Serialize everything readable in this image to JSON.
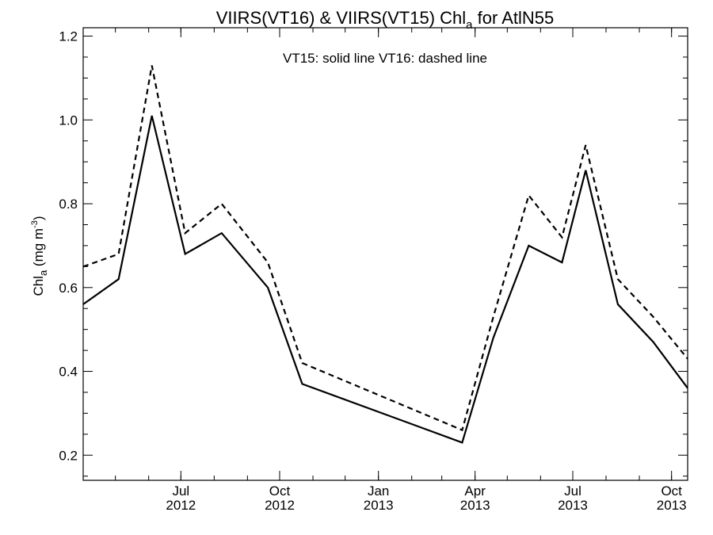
{
  "chart_data": {
    "type": "line",
    "title": {
      "prefix": "VIIRS(VT16) & VIIRS(VT15)  Chl",
      "subscript": "a",
      "suffix": " for AtlN55"
    },
    "annotation": "VT15: solid line   VT16: dashed line",
    "ylabel": {
      "prefix": "Chl",
      "subscript": "a",
      "middle": " (mg m",
      "superscript": "-3",
      "suffix": ")"
    },
    "xlim": [
      "2012-04-01",
      "2013-10-16"
    ],
    "ylim": [
      0.14,
      1.22
    ],
    "yticks": [
      {
        "value": 0.2,
        "label": "0.2"
      },
      {
        "value": 0.4,
        "label": "0.4"
      },
      {
        "value": 0.6,
        "label": "0.6"
      },
      {
        "value": 0.8,
        "label": "0.8"
      },
      {
        "value": 1.0,
        "label": "1.0"
      },
      {
        "value": 1.2,
        "label": "1.2"
      }
    ],
    "xticks": [
      {
        "date": "2012-07-01",
        "month": "Jul",
        "year": "2012"
      },
      {
        "date": "2012-10-01",
        "month": "Oct",
        "year": "2012"
      },
      {
        "date": "2013-01-01",
        "month": "Jan",
        "year": "2013"
      },
      {
        "date": "2013-04-01",
        "month": "Apr",
        "year": "2013"
      },
      {
        "date": "2013-07-01",
        "month": "Jul",
        "year": "2013"
      },
      {
        "date": "2013-10-01",
        "month": "Oct",
        "year": "2013"
      }
    ],
    "x": [
      "2012-04-01",
      "2012-05-04",
      "2012-06-04",
      "2012-07-05",
      "2012-08-08",
      "2012-09-20",
      "2012-10-22",
      "2013-03-20",
      "2013-04-18",
      "2013-05-21",
      "2013-06-21",
      "2013-07-13",
      "2013-08-12",
      "2013-09-14",
      "2013-10-16"
    ],
    "series": [
      {
        "style": "solid",
        "values": [
          0.56,
          0.62,
          1.01,
          0.68,
          0.73,
          0.6,
          0.37,
          0.23,
          0.48,
          0.7,
          0.66,
          0.88,
          0.56,
          0.47,
          0.36
        ]
      },
      {
        "style": "dashed",
        "values": [
          0.65,
          0.68,
          1.13,
          0.73,
          0.8,
          0.66,
          0.42,
          0.26,
          0.53,
          0.82,
          0.72,
          0.94,
          0.62,
          0.53,
          0.43
        ]
      }
    ]
  }
}
